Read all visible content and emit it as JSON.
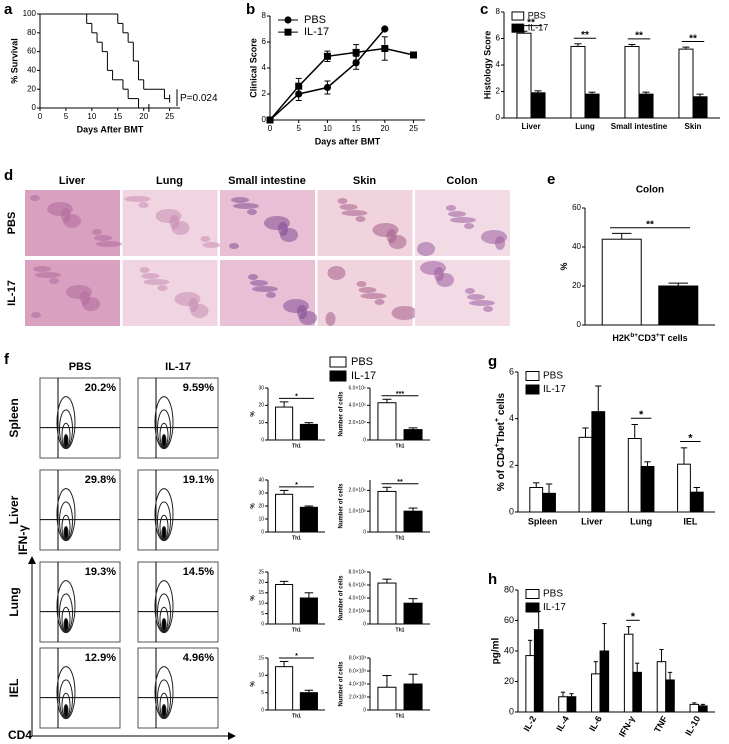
{
  "chart_data": [
    {
      "type": "line",
      "panel": "a",
      "step": true,
      "y_label": "% Survival",
      "x_label": "Days After BMT",
      "annotation": "P=0.024",
      "xlim": [
        0,
        27
      ],
      "xticks": [
        0,
        5,
        10,
        15,
        20,
        25
      ],
      "ylim": [
        0,
        100
      ],
      "yticks": [
        0,
        20,
        40,
        60,
        80,
        100
      ],
      "series": [
        {
          "color": "#000000",
          "x": [
            0,
            15,
            16,
            17,
            18,
            19,
            20,
            24,
            25
          ],
          "values": [
            100,
            90,
            80,
            70,
            50,
            30,
            20,
            10,
            10
          ]
        },
        {
          "color": "#000000",
          "x": [
            0,
            9,
            10,
            11,
            12,
            13,
            14,
            16,
            17,
            19,
            21
          ],
          "values": [
            100,
            90,
            80,
            70,
            60,
            40,
            30,
            20,
            10,
            0,
            0
          ]
        }
      ]
    },
    {
      "type": "line",
      "panel": "b",
      "y_label": "Clinical Score",
      "x_label": "Days after BMT",
      "legend": "upper left",
      "xlim": [
        0,
        27
      ],
      "xticks": [
        0,
        5,
        10,
        15,
        20,
        25
      ],
      "ylim": [
        0,
        8
      ],
      "yticks": [
        0,
        2,
        4,
        6,
        8
      ],
      "series": [
        {
          "name": "PBS",
          "color": "#000000",
          "marker": "circle",
          "x": [
            0,
            5,
            10,
            15,
            20
          ],
          "values": [
            0,
            2,
            2.5,
            4.4,
            7
          ],
          "errors": [
            0,
            0.5,
            0.5,
            0.5,
            0
          ]
        },
        {
          "name": "IL-17",
          "color": "#000000",
          "marker": "square",
          "x": [
            0,
            5,
            10,
            15,
            20,
            25
          ],
          "values": [
            0,
            2.6,
            4.9,
            5.2,
            5.5,
            5
          ],
          "errors": [
            0,
            0.6,
            0.4,
            0.6,
            0.9,
            0
          ]
        }
      ]
    },
    {
      "type": "bar",
      "panel": "c",
      "y_label": "Histology Score",
      "legend": "upper left",
      "ylim": [
        0,
        8
      ],
      "yticks": [
        0,
        2,
        4,
        6,
        8
      ],
      "categories": [
        "Liver",
        "Lung",
        "Small intestine",
        "Skin"
      ],
      "series": [
        {
          "name": "PBS",
          "color": "#ffffff",
          "values": [
            6.4,
            5.4,
            5.4,
            5.2
          ],
          "errors": [
            0.15,
            0.2,
            0.15,
            0.15
          ]
        },
        {
          "name": "IL-17",
          "color": "#000000",
          "values": [
            1.9,
            1.8,
            1.8,
            1.6
          ],
          "errors": [
            0.15,
            0.15,
            0.15,
            0.2
          ]
        }
      ],
      "significance": [
        "**",
        "**",
        "**",
        "**"
      ]
    },
    {
      "type": "bar",
      "panel": "e",
      "title": "Colon",
      "y_label": "%",
      "x_label": [
        "H2K",
        "b+",
        "CD3",
        "+",
        "T cells"
      ],
      "ylim": [
        0,
        60
      ],
      "yticks": [
        0,
        20,
        40,
        60
      ],
      "categories": [
        null
      ],
      "series": [
        {
          "color": "#ffffff",
          "values": [
            44
          ],
          "errors": [
            3
          ]
        },
        {
          "color": "#000000",
          "values": [
            20
          ],
          "errors": [
            1.5
          ]
        }
      ],
      "significance": [
        "**"
      ]
    },
    {
      "type": "bar",
      "panel": "g",
      "y_label": [
        "% of CD4",
        "+",
        "Tbet",
        "+",
        " cells"
      ],
      "legend": "upper left",
      "ylim": [
        0,
        6
      ],
      "yticks": [
        0,
        2,
        4,
        6
      ],
      "categories": [
        "Spleen",
        "Liver",
        "Lung",
        "IEL"
      ],
      "series": [
        {
          "name": "PBS",
          "color": "#ffffff",
          "values": [
            1.05,
            3.2,
            3.15,
            2.05
          ],
          "errors": [
            0.2,
            0.4,
            0.6,
            0.7
          ]
        },
        {
          "name": "IL-17",
          "color": "#000000",
          "values": [
            0.8,
            4.3,
            1.95,
            0.85
          ],
          "errors": [
            0.4,
            1.1,
            0.2,
            0.2
          ]
        }
      ],
      "significance": [
        null,
        null,
        "*",
        "*"
      ]
    },
    {
      "type": "bar",
      "panel": "h",
      "y_label": "pg/ml",
      "legend": "upper left",
      "ylim": [
        0,
        80
      ],
      "yticks": [
        0,
        20,
        40,
        60,
        80
      ],
      "categories": [
        "IL-2",
        "IL-4",
        "IL-6",
        "IFN-γ",
        "TNF",
        "IL-10"
      ],
      "series": [
        {
          "name": "PBS",
          "color": "#ffffff",
          "values": [
            37,
            10,
            25,
            51,
            33,
            5
          ],
          "errors": [
            10,
            3,
            8,
            5,
            8,
            1
          ]
        },
        {
          "name": "IL-17",
          "color": "#000000",
          "values": [
            54,
            10,
            40,
            26,
            21,
            4
          ],
          "errors": [
            12,
            2,
            18,
            6,
            5,
            1
          ]
        }
      ],
      "significance": [
        null,
        null,
        null,
        "*",
        null,
        null
      ]
    },
    {
      "type": "bar",
      "y_label": "%",
      "ylim": [
        0,
        30
      ],
      "yticks": [
        0,
        10,
        20,
        30
      ],
      "categories": [
        "Th1"
      ],
      "series": [
        {
          "color": "#ffffff",
          "values": [
            19
          ],
          "errors": [
            3
          ]
        },
        {
          "color": "#000000",
          "values": [
            9
          ],
          "errors": [
            1
          ]
        }
      ],
      "significance": [
        "*"
      ]
    },
    {
      "type": "bar",
      "y_label": "Number of cells",
      "ylim": [
        0,
        6000000
      ],
      "yticks": [
        0,
        {
          "value": 2000000,
          "label": "2.0×10⁶"
        },
        {
          "value": 4000000,
          "label": "4.0×10⁶"
        },
        {
          "value": 6000000,
          "label": "6.0×10⁶"
        }
      ],
      "categories": [
        "Th1"
      ],
      "series": [
        {
          "color": "#ffffff",
          "values": [
            4300000
          ],
          "errors": [
            400000
          ]
        },
        {
          "color": "#000000",
          "values": [
            1200000
          ],
          "errors": [
            200000
          ]
        }
      ],
      "significance": [
        "***"
      ]
    },
    {
      "type": "bar",
      "y_label": "%",
      "ylim": [
        0,
        40
      ],
      "yticks": [
        0,
        10,
        20,
        30,
        40
      ],
      "categories": [
        "Th1"
      ],
      "series": [
        {
          "color": "#ffffff",
          "values": [
            29
          ],
          "errors": [
            3
          ]
        },
        {
          "color": "#000000",
          "values": [
            19
          ],
          "errors": [
            1
          ]
        }
      ],
      "significance": [
        "*"
      ]
    },
    {
      "type": "bar",
      "y_label": "Number of cells",
      "ylim": [
        0,
        2500000
      ],
      "yticks": [
        0,
        {
          "value": 1000000,
          "label": "1.0×10⁶"
        },
        {
          "value": 2000000,
          "label": "2.0×10⁶"
        }
      ],
      "categories": [
        "Th1"
      ],
      "series": [
        {
          "color": "#ffffff",
          "values": [
            1950000
          ],
          "errors": [
            200000
          ]
        },
        {
          "color": "#000000",
          "values": [
            1000000
          ],
          "errors": [
            150000
          ]
        }
      ],
      "significance": [
        "**"
      ]
    },
    {
      "type": "bar",
      "y_label": "%",
      "ylim": [
        0,
        25
      ],
      "yticks": [
        0,
        5,
        10,
        15,
        20,
        25
      ],
      "categories": [
        "Th1"
      ],
      "series": [
        {
          "color": "#ffffff",
          "values": [
            19
          ],
          "errors": [
            1.5
          ]
        },
        {
          "color": "#000000",
          "values": [
            12.5
          ],
          "errors": [
            2.5
          ]
        }
      ],
      "significance": [
        null
      ]
    },
    {
      "type": "bar",
      "y_label": "Number of cells",
      "ylim": [
        0,
        8000000
      ],
      "yticks": [
        0,
        {
          "value": 2000000,
          "label": "2.0×10⁶"
        },
        {
          "value": 4000000,
          "label": "4.0×10⁶"
        },
        {
          "value": 6000000,
          "label": "6.0×10⁶"
        },
        {
          "value": 8000000,
          "label": "8.0×10⁶"
        }
      ],
      "categories": [
        "Th1"
      ],
      "series": [
        {
          "color": "#ffffff",
          "values": [
            6300000
          ],
          "errors": [
            600000
          ]
        },
        {
          "color": "#000000",
          "values": [
            3200000
          ],
          "errors": [
            700000
          ]
        }
      ],
      "significance": [
        null
      ]
    },
    {
      "type": "bar",
      "y_label": "%",
      "ylim": [
        0,
        15
      ],
      "yticks": [
        0,
        5,
        10,
        15
      ],
      "categories": [
        "Th1"
      ],
      "series": [
        {
          "color": "#ffffff",
          "values": [
            12.5
          ],
          "errors": [
            1.5
          ]
        },
        {
          "color": "#000000",
          "values": [
            5
          ],
          "errors": [
            0.7
          ]
        }
      ],
      "significance": [
        "*"
      ]
    },
    {
      "type": "bar",
      "y_label": "Number of cells",
      "ylim": [
        0,
        8000
      ],
      "yticks": [
        0,
        {
          "value": 2000,
          "label": "2.0×10³"
        },
        {
          "value": 4000,
          "label": "4.0×10³"
        },
        {
          "value": 6000,
          "label": "6.0×10³"
        },
        {
          "value": 8000,
          "label": "8.0×10³"
        }
      ],
      "categories": [
        "Th1"
      ],
      "series": [
        {
          "color": "#ffffff",
          "values": [
            3500
          ],
          "errors": [
            1800
          ]
        },
        {
          "color": "#000000",
          "values": [
            4000
          ],
          "errors": [
            1500
          ]
        }
      ],
      "significance": [
        null
      ]
    }
  ],
  "histology": {
    "panel": "d",
    "columns": [
      "Liver",
      "Lung",
      "Small intestine",
      "Skin",
      "Colon"
    ],
    "rows": [
      "PBS",
      "IL-17"
    ]
  },
  "flow": {
    "panel": "f",
    "columns": [
      "PBS",
      "IL-17"
    ],
    "rows": [
      {
        "label": "Spleen",
        "values": [
          "20.2%",
          "9.59%"
        ]
      },
      {
        "label": "Liver",
        "values": [
          "29.8%",
          "19.1%"
        ]
      },
      {
        "label": "Lung",
        "values": [
          "19.3%",
          "14.5%"
        ]
      },
      {
        "label": "IEL",
        "values": [
          "12.9%",
          "4.96%"
        ]
      }
    ],
    "y_label": "IFN-γ",
    "x_label": "CD4",
    "legend": [
      {
        "name": "PBS",
        "color": "#ffffff"
      },
      {
        "name": "IL-17",
        "color": "#000000"
      }
    ]
  }
}
